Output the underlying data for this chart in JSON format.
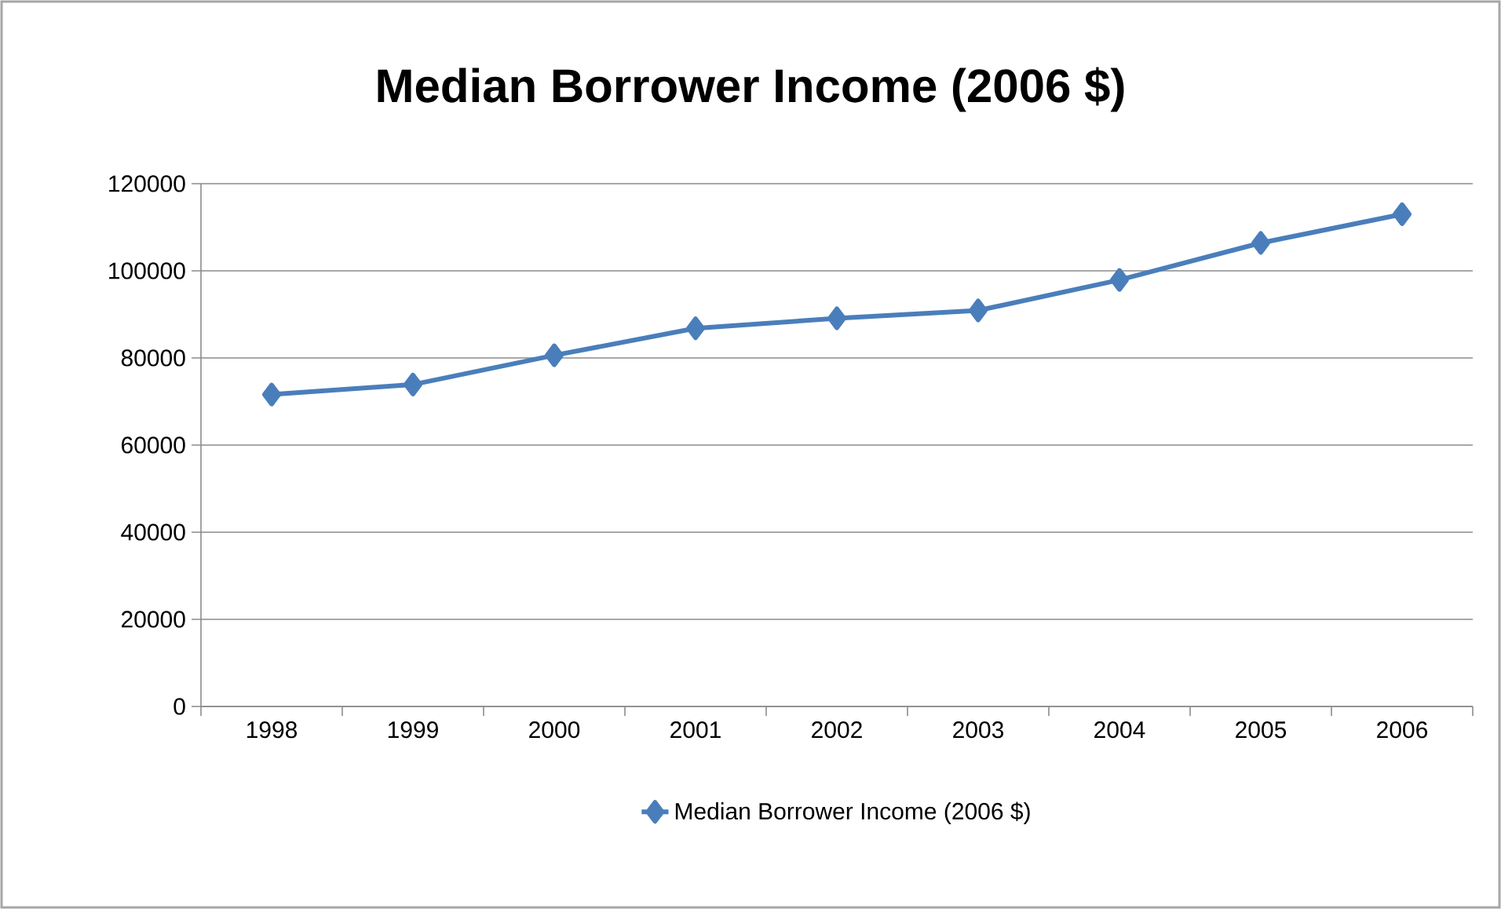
{
  "chart_data": {
    "type": "line",
    "title": "Median Borrower Income (2006 $)",
    "categories": [
      "1998",
      "1999",
      "2000",
      "2001",
      "2002",
      "2003",
      "2004",
      "2005",
      "2006"
    ],
    "series": [
      {
        "name": "Median Borrower Income (2006 $)",
        "color": "#4a7ebb",
        "values": [
          71600,
          73900,
          80600,
          86800,
          89100,
          90900,
          97900,
          106400,
          113000
        ]
      }
    ],
    "ylim": [
      0,
      120000
    ],
    "yticks": [
      0,
      20000,
      40000,
      60000,
      80000,
      100000,
      120000
    ],
    "grid": "y",
    "legend": "bottom",
    "marker": "diamond",
    "line_style": "solid"
  }
}
